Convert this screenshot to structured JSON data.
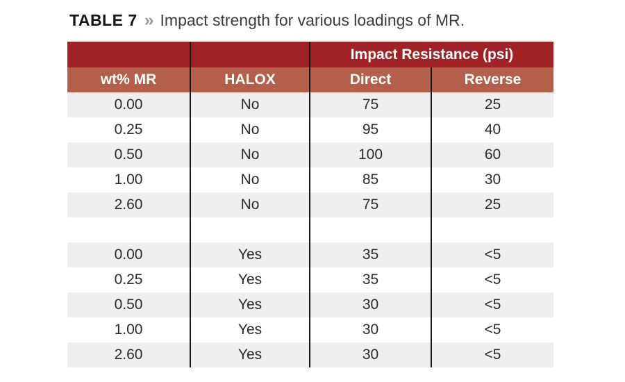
{
  "title": {
    "label": "TABLE 7",
    "separator": "»",
    "text": "Impact strength for various loadings of MR."
  },
  "table": {
    "group_header": "Impact Resistance (psi)",
    "columns": [
      "wt% MR",
      "HALOX",
      "Direct",
      "Reverse"
    ],
    "rows": [
      [
        "0.00",
        "No",
        "75",
        "25"
      ],
      [
        "0.25",
        "No",
        "95",
        "40"
      ],
      [
        "0.50",
        "No",
        "100",
        "60"
      ],
      [
        "1.00",
        "No",
        "85",
        "30"
      ],
      [
        "2.60",
        "No",
        "75",
        "25"
      ],
      [
        "",
        "",
        "",
        ""
      ],
      [
        "0.00",
        "Yes",
        "35",
        "<5"
      ],
      [
        "0.25",
        "Yes",
        "35",
        "<5"
      ],
      [
        "0.50",
        "Yes",
        "30",
        "<5"
      ],
      [
        "1.00",
        "Yes",
        "30",
        "<5"
      ],
      [
        "2.60",
        "Yes",
        "30",
        "<5"
      ]
    ],
    "colors": {
      "header_dark_red": "#9f2226",
      "header_terracotta": "#b35f4b",
      "stripe_gray": "#efefef",
      "stripe_white": "#ffffff",
      "divider_black": "#151515"
    }
  },
  "chart_data": {
    "type": "table",
    "title": "Impact strength for various loadings of MR.",
    "group_header": "Impact Resistance (psi)",
    "columns": [
      "wt% MR",
      "HALOX",
      "Direct",
      "Reverse"
    ],
    "rows": [
      [
        "0.00",
        "No",
        "75",
        "25"
      ],
      [
        "0.25",
        "No",
        "95",
        "40"
      ],
      [
        "0.50",
        "No",
        "100",
        "60"
      ],
      [
        "1.00",
        "No",
        "85",
        "30"
      ],
      [
        "2.60",
        "No",
        "75",
        "25"
      ],
      [
        "0.00",
        "Yes",
        "35",
        "<5"
      ],
      [
        "0.25",
        "Yes",
        "35",
        "<5"
      ],
      [
        "0.50",
        "Yes",
        "30",
        "<5"
      ],
      [
        "1.00",
        "Yes",
        "30",
        "<5"
      ],
      [
        "2.60",
        "Yes",
        "30",
        "<5"
      ]
    ]
  }
}
